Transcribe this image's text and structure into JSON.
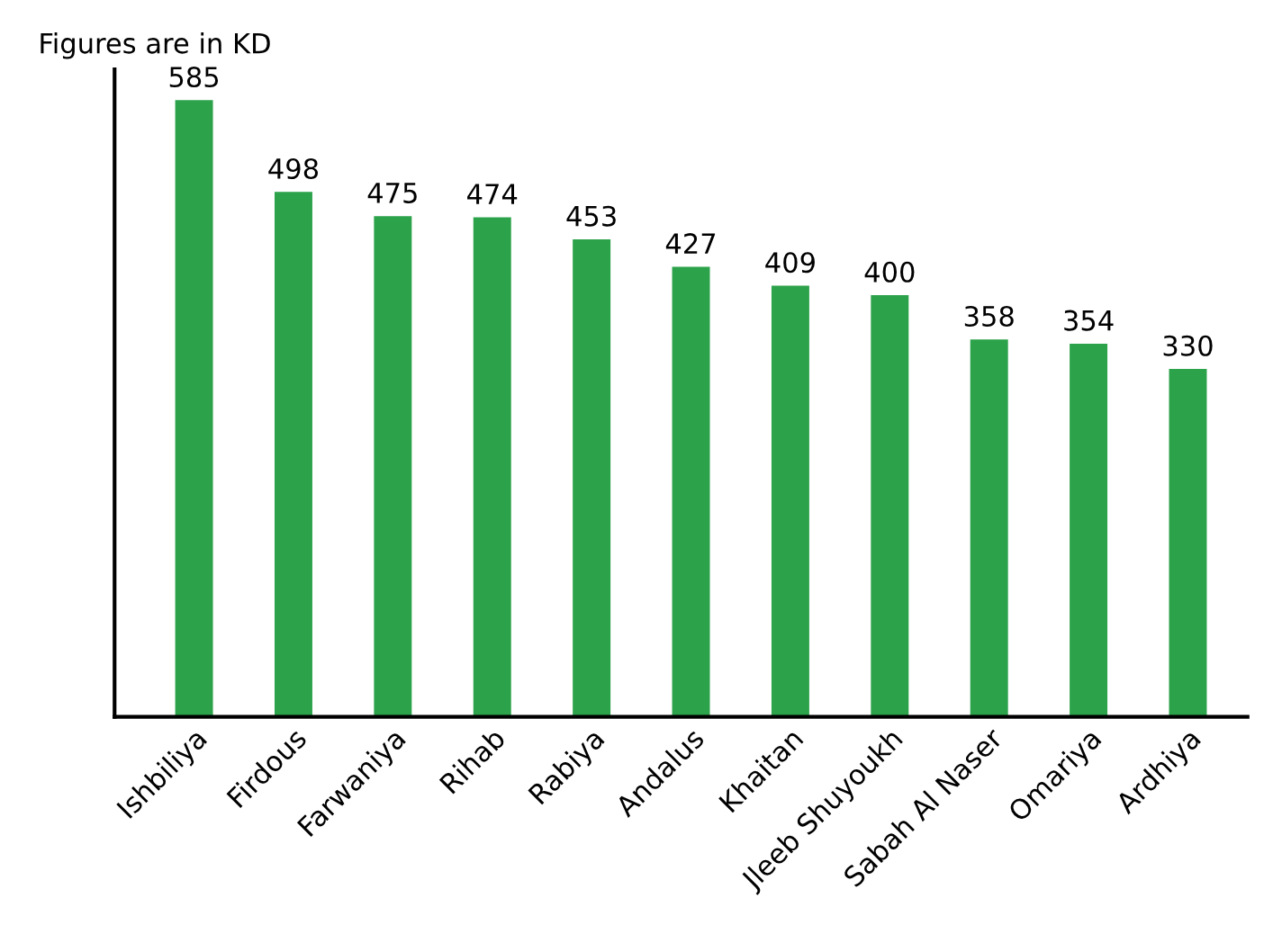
{
  "chart_data": {
    "type": "bar",
    "title": "Figures are in KD",
    "categories": [
      "Ishbiliya",
      "Firdous",
      "Farwaniya",
      "Rihab",
      "Rabiya",
      "Andalus",
      "Khaitan",
      "Jleeb Shuyoukh",
      "Sabah Al Naser",
      "Omariya",
      "Ardhiya"
    ],
    "values": [
      585,
      498,
      475,
      474,
      453,
      427,
      409,
      400,
      358,
      354,
      330
    ],
    "color": "#2ca24a",
    "data_labels": true,
    "tick_labels": "x",
    "grid": false,
    "legend": false
  }
}
